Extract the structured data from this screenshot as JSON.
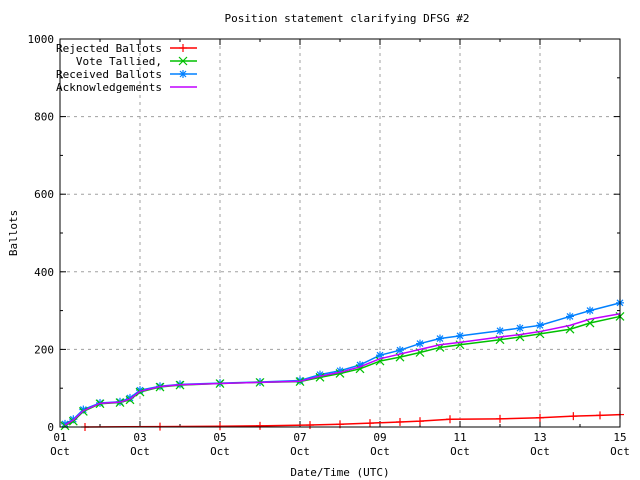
{
  "chart_data": {
    "type": "line",
    "title": "Position statement clarifying DFSG #2",
    "xlabel": "Date/Time (UTC)",
    "ylabel": "Ballots",
    "ylim": [
      0,
      1000
    ],
    "yticks": [
      "0",
      "200",
      "400",
      "600",
      "800",
      "1000"
    ],
    "xlim": [
      "Oct 01 00:00",
      "Oct 15 00:00"
    ],
    "xticks": [
      {
        "day": "01",
        "month": "Oct"
      },
      {
        "day": "03",
        "month": "Oct"
      },
      {
        "day": "05",
        "month": "Oct"
      },
      {
        "day": "07",
        "month": "Oct"
      },
      {
        "day": "09",
        "month": "Oct"
      },
      {
        "day": "11",
        "month": "Oct"
      },
      {
        "day": "13",
        "month": "Oct"
      },
      {
        "day": "15",
        "month": "Oct"
      }
    ],
    "grid": true,
    "legend_position": "top-left",
    "series": [
      {
        "name": "Rejected Ballots",
        "color": "#ff0000",
        "marker": "plus",
        "x": [
          "Oct 01 15:00",
          "Oct 03 12:00",
          "Oct 05 00:00",
          "Oct 06 00:00",
          "Oct 07 06:00",
          "Oct 08 00:00",
          "Oct 08 18:00",
          "Oct 09 12:00",
          "Oct 10 00:00",
          "Oct 10 18:00",
          "Oct 12 00:00",
          "Oct 13 00:00",
          "Oct 13 20:00",
          "Oct 14 12:00",
          "Oct 15 00:00"
        ],
        "y": [
          0,
          1,
          2,
          3,
          5,
          7,
          10,
          13,
          15,
          20,
          21,
          24,
          28,
          30,
          32
        ]
      },
      {
        "name": "Vote Tallied,",
        "color": "#00c000",
        "marker": "cross",
        "x": [
          "Oct 01 03:00",
          "Oct 01 08:00",
          "Oct 01 14:00",
          "Oct 02 00:00",
          "Oct 02 12:00",
          "Oct 02 18:00",
          "Oct 03 00:00",
          "Oct 03 12:00",
          "Oct 04 00:00",
          "Oct 05 00:00",
          "Oct 06 00:00",
          "Oct 07 00:00",
          "Oct 07 12:00",
          "Oct 08 00:00",
          "Oct 08 12:00",
          "Oct 09 00:00",
          "Oct 09 12:00",
          "Oct 10 00:00",
          "Oct 10 12:00",
          "Oct 11 00:00",
          "Oct 12 00:00",
          "Oct 12 12:00",
          "Oct 13 00:00",
          "Oct 13 18:00",
          "Oct 14 06:00",
          "Oct 15 00:00"
        ],
        "y": [
          3,
          15,
          40,
          60,
          63,
          70,
          90,
          103,
          108,
          112,
          115,
          117,
          128,
          138,
          150,
          170,
          180,
          192,
          205,
          212,
          225,
          232,
          240,
          252,
          268,
          285
        ]
      },
      {
        "name": "Received Ballots",
        "color": "#0080ff",
        "marker": "star",
        "x": [
          "Oct 01 03:00",
          "Oct 01 08:00",
          "Oct 01 14:00",
          "Oct 02 00:00",
          "Oct 02 12:00",
          "Oct 02 18:00",
          "Oct 03 00:00",
          "Oct 03 12:00",
          "Oct 04 00:00",
          "Oct 05 00:00",
          "Oct 06 00:00",
          "Oct 07 00:00",
          "Oct 07 12:00",
          "Oct 08 00:00",
          "Oct 08 12:00",
          "Oct 09 00:00",
          "Oct 09 12:00",
          "Oct 10 00:00",
          "Oct 10 12:00",
          "Oct 11 00:00",
          "Oct 12 00:00",
          "Oct 12 12:00",
          "Oct 13 00:00",
          "Oct 13 18:00",
          "Oct 14 06:00",
          "Oct 15 00:00"
        ],
        "y": [
          8,
          20,
          45,
          62,
          65,
          75,
          95,
          105,
          110,
          113,
          116,
          120,
          135,
          145,
          160,
          185,
          198,
          215,
          228,
          235,
          248,
          255,
          262,
          285,
          300,
          320
        ]
      },
      {
        "name": "Acknowledgements",
        "color": "#c000ff",
        "marker": "none",
        "x": [
          "Oct 01 03:00",
          "Oct 01 08:00",
          "Oct 01 14:00",
          "Oct 02 00:00",
          "Oct 02 12:00",
          "Oct 02 18:00",
          "Oct 03 00:00",
          "Oct 03 12:00",
          "Oct 04 00:00",
          "Oct 05 00:00",
          "Oct 06 00:00",
          "Oct 07 00:00",
          "Oct 07 12:00",
          "Oct 08 00:00",
          "Oct 08 12:00",
          "Oct 09 00:00",
          "Oct 09 12:00",
          "Oct 10 00:00",
          "Oct 10 12:00",
          "Oct 11 00:00",
          "Oct 12 00:00",
          "Oct 12 12:00",
          "Oct 13 00:00",
          "Oct 13 18:00",
          "Oct 14 06:00",
          "Oct 15 00:00"
        ],
        "y": [
          5,
          18,
          42,
          61,
          64,
          72,
          92,
          104,
          109,
          112,
          115,
          118,
          131,
          141,
          155,
          176,
          188,
          200,
          212,
          218,
          232,
          238,
          246,
          262,
          278,
          292
        ]
      }
    ]
  }
}
